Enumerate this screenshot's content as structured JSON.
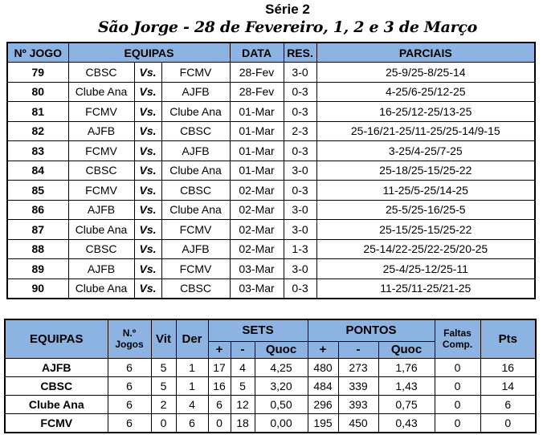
{
  "title": "Série 2",
  "subtitle": "São Jorge - 28 de Fevereiro, 1, 2 e 3 de Março",
  "games": {
    "headers": {
      "jogo": "Nº JOGO",
      "equipas": "EQUIPAS",
      "data": "DATA",
      "res": "RES.",
      "parciais": "PARCIAIS"
    },
    "rows": [
      {
        "n": "79",
        "home": "CBSC",
        "vs": "Vs.",
        "away": "FCMV",
        "date": "28-Fev",
        "res": "3-0",
        "sets": "25-9/25-8/25-14"
      },
      {
        "n": "80",
        "home": "Clube Ana",
        "vs": "Vs.",
        "away": "AJFB",
        "date": "28-Fev",
        "res": "0-3",
        "sets": "4-25/6-25/12-25"
      },
      {
        "n": "81",
        "home": "FCMV",
        "vs": "Vs.",
        "away": "Clube Ana",
        "date": "01-Mar",
        "res": "0-3",
        "sets": "16-25/12-25/13-25"
      },
      {
        "n": "82",
        "home": "AJFB",
        "vs": "Vs.",
        "away": "CBSC",
        "date": "01-Mar",
        "res": "2-3",
        "sets": "25-16/21-25/11-25/25-14/9-15"
      },
      {
        "n": "83",
        "home": "FCMV",
        "vs": "Vs.",
        "away": "AJFB",
        "date": "01-Mar",
        "res": "0-3",
        "sets": "3-25/4-25/7-25"
      },
      {
        "n": "84",
        "home": "CBSC",
        "vs": "Vs.",
        "away": "Clube Ana",
        "date": "01-Mar",
        "res": "3-0",
        "sets": "25-18/25-15/25-22"
      },
      {
        "n": "85",
        "home": "FCMV",
        "vs": "Vs.",
        "away": "CBSC",
        "date": "02-Mar",
        "res": "0-3",
        "sets": "11-25/5-25/14-25"
      },
      {
        "n": "86",
        "home": "AJFB",
        "vs": "Vs.",
        "away": "Clube Ana",
        "date": "02-Mar",
        "res": "3-0",
        "sets": "25-5/25-16/25-5"
      },
      {
        "n": "87",
        "home": "Clube Ana",
        "vs": "Vs.",
        "away": "FCMV",
        "date": "02-Mar",
        "res": "3-0",
        "sets": "25-15/25-15/25-22"
      },
      {
        "n": "88",
        "home": "CBSC",
        "vs": "Vs.",
        "away": "AJFB",
        "date": "02-Mar",
        "res": "1-3",
        "sets": "25-14/22-25/22-25/20-25"
      },
      {
        "n": "89",
        "home": "AJFB",
        "vs": "Vs.",
        "away": "FCMV",
        "date": "03-Mar",
        "res": "3-0",
        "sets": "25-4/25-12/25-11"
      },
      {
        "n": "90",
        "home": "Clube Ana",
        "vs": "Vs.",
        "away": "CBSC",
        "date": "03-Mar",
        "res": "0-3",
        "sets": "11-25/11-25/21-25"
      }
    ]
  },
  "standings": {
    "headers": {
      "equipas": "EQUIPAS",
      "jogos": "N.º Jogos",
      "vit": "Vit",
      "der": "Der",
      "sets": "SETS",
      "pontos": "PONTOS",
      "plus": "+",
      "minus": "-",
      "quoc": "Quoc",
      "faltas": "Faltas Comp.",
      "pts": "Pts"
    },
    "rows": [
      {
        "team": "AJFB",
        "j": "6",
        "v": "5",
        "d": "1",
        "sp": "17",
        "sm": "4",
        "sq": "4,25",
        "pp": "480",
        "pm": "273",
        "pq": "1,76",
        "f": "0",
        "pts": "16"
      },
      {
        "team": "CBSC",
        "j": "6",
        "v": "5",
        "d": "1",
        "sp": "16",
        "sm": "5",
        "sq": "3,20",
        "pp": "484",
        "pm": "339",
        "pq": "1,43",
        "f": "0",
        "pts": "14"
      },
      {
        "team": "Clube Ana",
        "j": "6",
        "v": "2",
        "d": "4",
        "sp": "6",
        "sm": "12",
        "sq": "0,50",
        "pp": "296",
        "pm": "393",
        "pq": "0,75",
        "f": "0",
        "pts": "6"
      },
      {
        "team": "FCMV",
        "j": "6",
        "v": "0",
        "d": "6",
        "sp": "0",
        "sm": "18",
        "sq": "0,00",
        "pp": "195",
        "pm": "450",
        "pq": "0,43",
        "f": "0",
        "pts": "0"
      }
    ]
  },
  "colors": {
    "header_bg": "#8db3e2"
  }
}
